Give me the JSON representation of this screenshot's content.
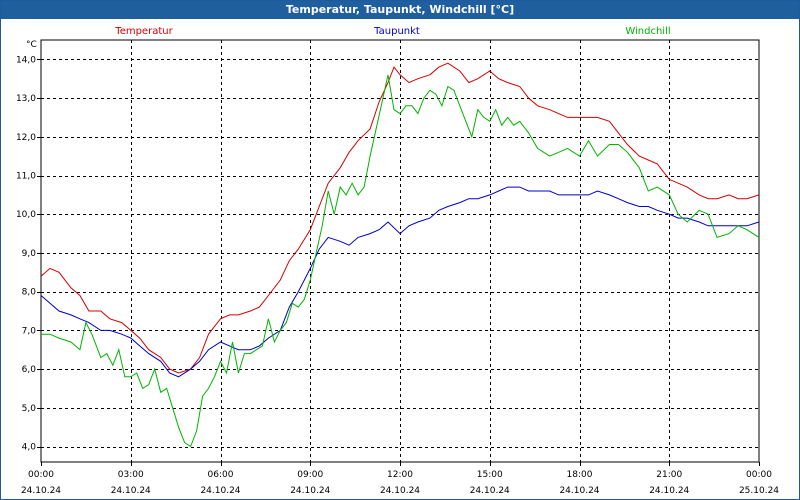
{
  "window": {
    "title": "Temperatur, Taupunkt, Windchill [°C]"
  },
  "chart_data": {
    "type": "line",
    "title": "Temperatur, Taupunkt, Windchill [°C]",
    "ylabel": "°C",
    "ylim": [
      3.6,
      14.5
    ],
    "xlim": [
      0,
      24
    ],
    "y_ticks": [
      4.0,
      5.0,
      6.0,
      7.0,
      8.0,
      9.0,
      10.0,
      11.0,
      12.0,
      13.0,
      14.0
    ],
    "y_tick_labels": [
      "4,0",
      "5,0",
      "6,0",
      "7,0",
      "8,0",
      "9,0",
      "10,0",
      "11,0",
      "12,0",
      "13,0",
      "14,0"
    ],
    "x_ticks": [
      {
        "x": 0,
        "time": "00:00",
        "date": "24.10.24"
      },
      {
        "x": 3,
        "time": "03:00",
        "date": "24.10.24"
      },
      {
        "x": 6,
        "time": "06:00",
        "date": "24.10.24"
      },
      {
        "x": 9,
        "time": "09:00",
        "date": "24.10.24"
      },
      {
        "x": 12,
        "time": "12:00",
        "date": "24.10.24"
      },
      {
        "x": 15,
        "time": "15:00",
        "date": "24.10.24"
      },
      {
        "x": 18,
        "time": "18:00",
        "date": "24.10.24"
      },
      {
        "x": 21,
        "time": "21:00",
        "date": "24.10.24"
      },
      {
        "x": 24,
        "time": "00:00",
        "date": "25.10.24"
      }
    ],
    "grid": true,
    "colors": {
      "Temperatur": "#d40000",
      "Taupunkt": "#0000c8",
      "Windchill": "#00b400"
    },
    "series": [
      {
        "name": "Temperatur",
        "color": "#d40000",
        "x": [
          0,
          0.3,
          0.6,
          1.0,
          1.3,
          1.6,
          2.0,
          2.3,
          2.7,
          3.0,
          3.3,
          3.6,
          4.0,
          4.3,
          4.6,
          5.0,
          5.3,
          5.6,
          6.0,
          6.3,
          6.6,
          7.0,
          7.3,
          7.6,
          8.0,
          8.3,
          8.6,
          9.0,
          9.3,
          9.6,
          10.0,
          10.3,
          10.6,
          11.0,
          11.3,
          11.6,
          11.8,
          12.0,
          12.3,
          12.6,
          13.0,
          13.3,
          13.6,
          14.0,
          14.3,
          14.6,
          15.0,
          15.3,
          15.6,
          16.0,
          16.3,
          16.6,
          17.0,
          17.3,
          17.6,
          18.0,
          18.3,
          18.6,
          19.0,
          19.3,
          19.6,
          20.0,
          20.3,
          20.6,
          21.0,
          21.3,
          21.6,
          22.0,
          22.3,
          22.6,
          23.0,
          23.3,
          23.6,
          24.0
        ],
        "values": [
          8.4,
          8.6,
          8.5,
          8.1,
          7.9,
          7.5,
          7.5,
          7.3,
          7.2,
          7.0,
          6.8,
          6.5,
          6.3,
          6.0,
          5.9,
          6.0,
          6.3,
          6.9,
          7.3,
          7.4,
          7.4,
          7.5,
          7.6,
          7.9,
          8.3,
          8.8,
          9.1,
          9.6,
          10.2,
          10.8,
          11.2,
          11.6,
          11.9,
          12.2,
          12.9,
          13.4,
          13.8,
          13.6,
          13.4,
          13.5,
          13.6,
          13.8,
          13.9,
          13.7,
          13.4,
          13.5,
          13.7,
          13.5,
          13.4,
          13.3,
          13.0,
          12.8,
          12.7,
          12.6,
          12.5,
          12.5,
          12.5,
          12.5,
          12.4,
          12.1,
          11.8,
          11.5,
          11.4,
          11.3,
          10.9,
          10.8,
          10.7,
          10.5,
          10.4,
          10.4,
          10.5,
          10.4,
          10.4,
          10.5
        ]
      },
      {
        "name": "Taupunkt",
        "color": "#0000c8",
        "x": [
          0,
          0.3,
          0.6,
          1.0,
          1.3,
          1.6,
          2.0,
          2.3,
          2.7,
          3.0,
          3.3,
          3.6,
          4.0,
          4.3,
          4.6,
          5.0,
          5.3,
          5.6,
          6.0,
          6.3,
          6.6,
          7.0,
          7.3,
          7.6,
          8.0,
          8.3,
          8.6,
          9.0,
          9.3,
          9.6,
          10.0,
          10.3,
          10.6,
          11.0,
          11.3,
          11.6,
          12.0,
          12.3,
          12.6,
          13.0,
          13.3,
          13.6,
          14.0,
          14.3,
          14.6,
          15.0,
          15.3,
          15.6,
          16.0,
          16.3,
          16.6,
          17.0,
          17.3,
          17.6,
          18.0,
          18.3,
          18.6,
          19.0,
          19.3,
          19.6,
          20.0,
          20.3,
          20.6,
          21.0,
          21.3,
          21.6,
          22.0,
          22.3,
          22.6,
          23.0,
          23.3,
          23.6,
          24.0
        ],
        "values": [
          7.9,
          7.7,
          7.5,
          7.4,
          7.3,
          7.2,
          7.0,
          7.0,
          6.9,
          6.8,
          6.6,
          6.4,
          6.2,
          5.9,
          5.8,
          6.0,
          6.2,
          6.5,
          6.7,
          6.6,
          6.5,
          6.5,
          6.6,
          6.8,
          7.0,
          7.6,
          8.0,
          8.6,
          9.1,
          9.4,
          9.3,
          9.2,
          9.4,
          9.5,
          9.6,
          9.8,
          9.5,
          9.7,
          9.8,
          9.9,
          10.1,
          10.2,
          10.3,
          10.4,
          10.4,
          10.5,
          10.6,
          10.7,
          10.7,
          10.6,
          10.6,
          10.6,
          10.5,
          10.5,
          10.5,
          10.5,
          10.6,
          10.5,
          10.4,
          10.3,
          10.2,
          10.2,
          10.1,
          10.0,
          9.9,
          9.9,
          9.8,
          9.7,
          9.7,
          9.7,
          9.7,
          9.7,
          9.8
        ]
      },
      {
        "name": "Windchill",
        "color": "#00b400",
        "x": [
          0,
          0.3,
          0.6,
          1.0,
          1.3,
          1.5,
          1.7,
          2.0,
          2.2,
          2.4,
          2.6,
          2.8,
          3.0,
          3.2,
          3.4,
          3.6,
          3.8,
          4.0,
          4.2,
          4.4,
          4.6,
          4.8,
          5.0,
          5.2,
          5.4,
          5.6,
          5.8,
          6.0,
          6.2,
          6.4,
          6.6,
          6.8,
          7.0,
          7.2,
          7.4,
          7.6,
          7.8,
          8.0,
          8.2,
          8.4,
          8.6,
          8.8,
          9.0,
          9.2,
          9.4,
          9.6,
          9.8,
          10.0,
          10.2,
          10.4,
          10.6,
          10.8,
          11.0,
          11.2,
          11.4,
          11.6,
          11.8,
          12.0,
          12.2,
          12.4,
          12.6,
          12.8,
          13.0,
          13.2,
          13.4,
          13.6,
          13.8,
          14.0,
          14.2,
          14.4,
          14.6,
          14.8,
          15.0,
          15.2,
          15.4,
          15.6,
          15.8,
          16.0,
          16.3,
          16.6,
          17.0,
          17.3,
          17.6,
          18.0,
          18.3,
          18.6,
          19.0,
          19.3,
          19.6,
          20.0,
          20.3,
          20.6,
          21.0,
          21.3,
          21.6,
          22.0,
          22.3,
          22.6,
          23.0,
          23.3,
          23.6,
          24.0
        ],
        "values": [
          6.9,
          6.9,
          6.8,
          6.7,
          6.5,
          7.2,
          6.9,
          6.3,
          6.4,
          6.1,
          6.5,
          5.8,
          5.8,
          5.9,
          5.5,
          5.6,
          6.0,
          5.4,
          5.5,
          5.0,
          4.5,
          4.1,
          4.0,
          4.4,
          5.3,
          5.5,
          5.8,
          6.2,
          5.9,
          6.7,
          5.9,
          6.4,
          6.4,
          6.5,
          6.6,
          7.3,
          6.7,
          7.0,
          7.2,
          7.7,
          7.6,
          7.8,
          8.3,
          9.0,
          9.7,
          10.6,
          10.0,
          10.7,
          10.5,
          10.8,
          10.5,
          10.7,
          11.5,
          12.2,
          12.9,
          13.6,
          12.7,
          12.6,
          12.8,
          12.8,
          12.6,
          13.0,
          13.2,
          13.1,
          12.8,
          13.3,
          13.2,
          12.8,
          12.4,
          12.0,
          12.7,
          12.5,
          12.4,
          12.7,
          12.3,
          12.5,
          12.3,
          12.4,
          12.1,
          11.7,
          11.5,
          11.6,
          11.7,
          11.5,
          11.9,
          11.5,
          11.8,
          11.8,
          11.6,
          11.2,
          10.6,
          10.7,
          10.5,
          10.0,
          9.8,
          10.1,
          10.0,
          9.4,
          9.5,
          9.7,
          9.6,
          9.4
        ]
      }
    ]
  }
}
